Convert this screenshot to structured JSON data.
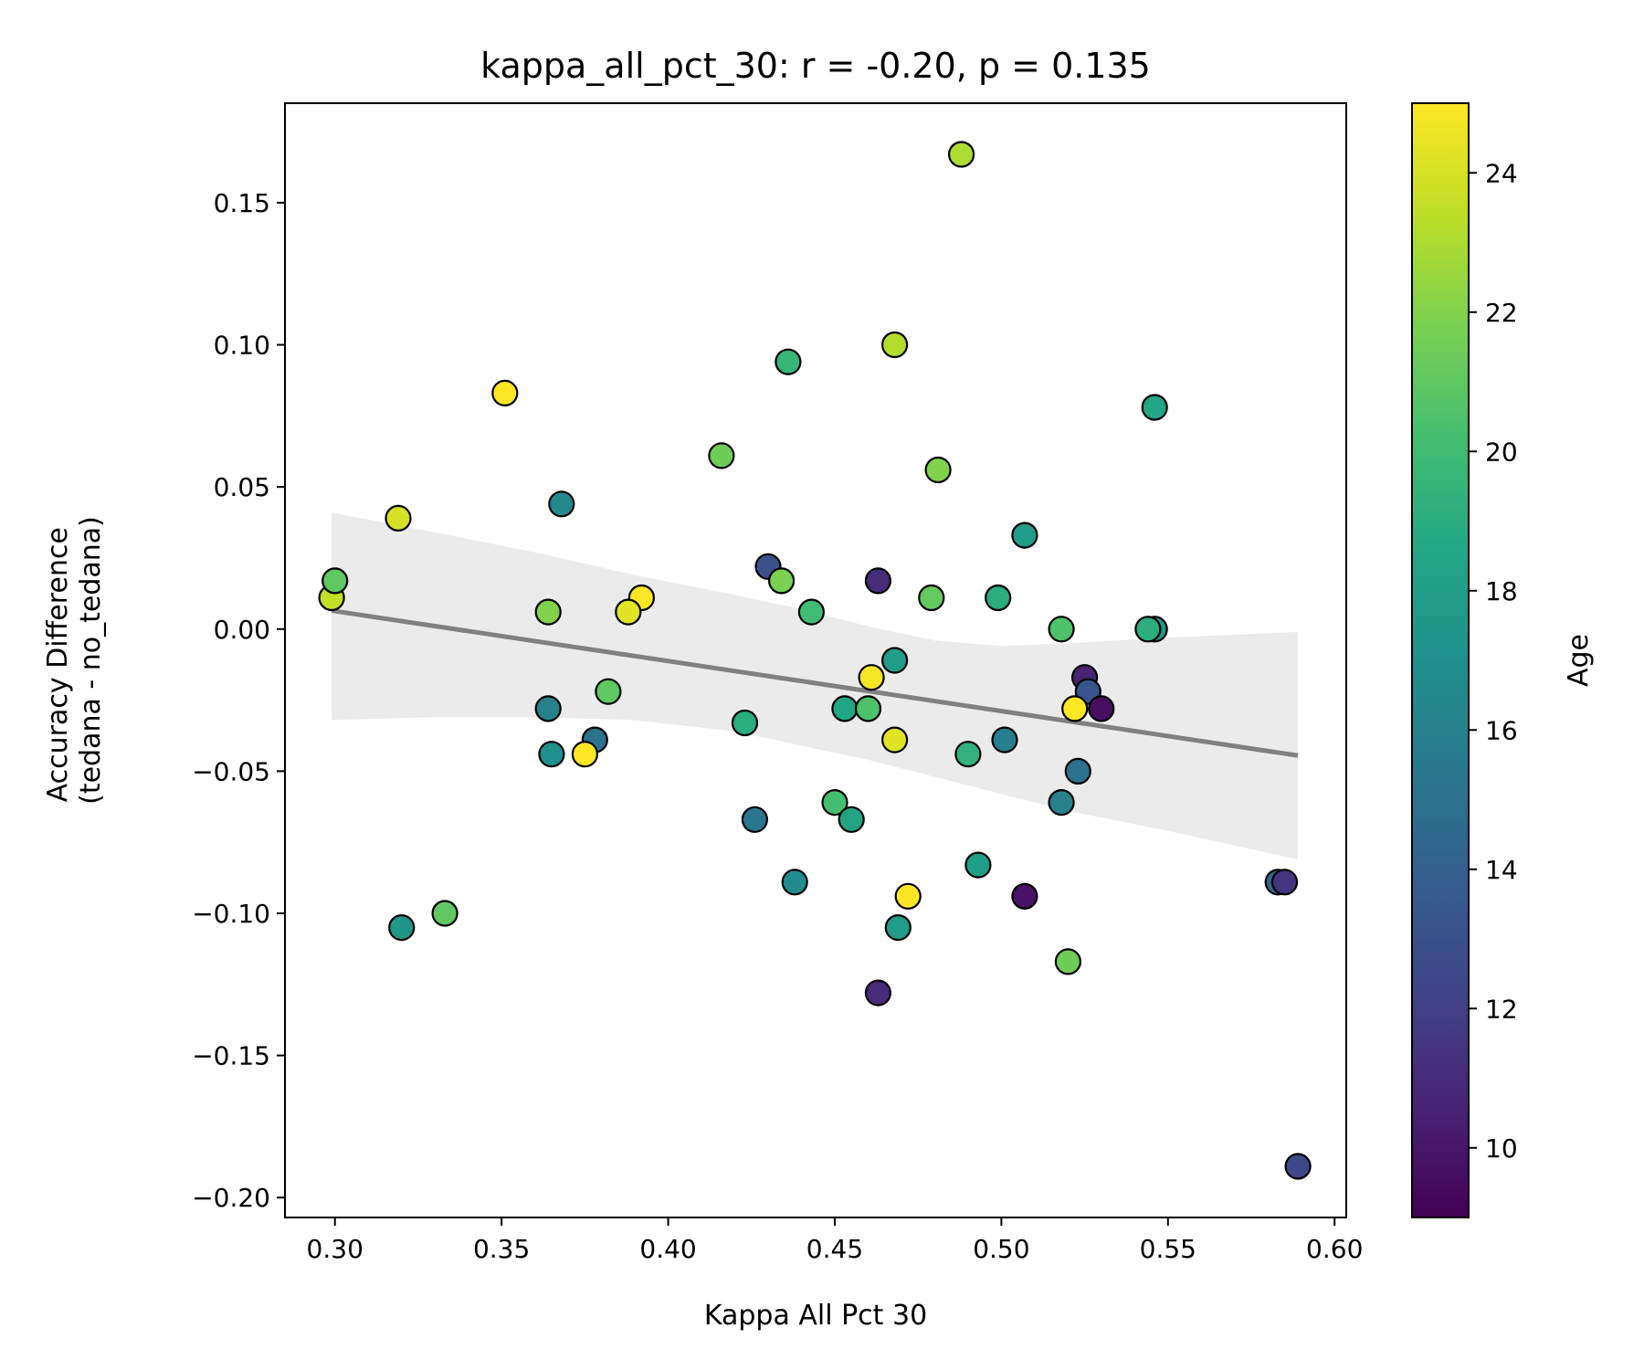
{
  "chart_data": {
    "type": "scatter",
    "title": "kappa_all_pct_30: r = -0.20, p = 0.135",
    "xlabel": "Kappa All Pct 30",
    "ylabel_line1": "Accuracy Difference",
    "ylabel_line2": "(tedana - no_tedana)",
    "colorbar_label": "Age",
    "colormap": "viridis",
    "grid": false,
    "xlim": [
      0.285,
      0.6035
    ],
    "ylim": [
      -0.207,
      0.185
    ],
    "clim": [
      9.0,
      25.0
    ],
    "x_ticks": [
      0.3,
      0.35,
      0.4,
      0.45,
      0.5,
      0.55,
      0.6
    ],
    "x_tick_labels": [
      "0.30",
      "0.35",
      "0.40",
      "0.45",
      "0.50",
      "0.55",
      "0.60"
    ],
    "y_ticks": [
      0.15,
      0.1,
      0.05,
      0.0,
      -0.05,
      -0.1,
      -0.15,
      -0.2
    ],
    "y_tick_labels": [
      "0.15",
      "0.10",
      "0.05",
      "0.00",
      "−0.05",
      "−0.10",
      "−0.15",
      "−0.20"
    ],
    "c_ticks": [
      10,
      12,
      14,
      16,
      18,
      20,
      22,
      24
    ],
    "c_tick_labels": [
      "10",
      "12",
      "14",
      "16",
      "18",
      "20",
      "22",
      "24"
    ],
    "regression": {
      "x": [
        0.299,
        0.589
      ],
      "y": [
        0.0065,
        -0.0445
      ],
      "color": "#808080"
    },
    "ci_band": {
      "upper": [
        [
          0.299,
          0.041
        ],
        [
          0.33,
          0.034
        ],
        [
          0.36,
          0.027
        ],
        [
          0.39,
          0.019
        ],
        [
          0.42,
          0.012
        ],
        [
          0.44,
          0.007
        ],
        [
          0.46,
          0.001
        ],
        [
          0.48,
          -0.004
        ],
        [
          0.5,
          -0.006
        ],
        [
          0.52,
          -0.005
        ],
        [
          0.55,
          -0.003
        ],
        [
          0.589,
          -0.001
        ]
      ],
      "lower": [
        [
          0.299,
          -0.032
        ],
        [
          0.33,
          -0.031
        ],
        [
          0.36,
          -0.031
        ],
        [
          0.39,
          -0.032
        ],
        [
          0.42,
          -0.036
        ],
        [
          0.44,
          -0.041
        ],
        [
          0.46,
          -0.046
        ],
        [
          0.48,
          -0.052
        ],
        [
          0.5,
          -0.058
        ],
        [
          0.52,
          -0.064
        ],
        [
          0.55,
          -0.071
        ],
        [
          0.589,
          -0.081
        ]
      ],
      "color": "#ebebeb"
    },
    "points": [
      {
        "x": 0.488,
        "y": 0.167,
        "c": 23.0
      },
      {
        "x": 0.468,
        "y": 0.1,
        "c": 23.2
      },
      {
        "x": 0.436,
        "y": 0.094,
        "c": 19.6
      },
      {
        "x": 0.351,
        "y": 0.083,
        "c": 25.0
      },
      {
        "x": 0.546,
        "y": 0.078,
        "c": 18.5
      },
      {
        "x": 0.416,
        "y": 0.061,
        "c": 21.5
      },
      {
        "x": 0.481,
        "y": 0.056,
        "c": 22.0
      },
      {
        "x": 0.368,
        "y": 0.044,
        "c": 16.5
      },
      {
        "x": 0.319,
        "y": 0.039,
        "c": 24.0
      },
      {
        "x": 0.507,
        "y": 0.033,
        "c": 17.8
      },
      {
        "x": 0.43,
        "y": 0.022,
        "c": 13.0
      },
      {
        "x": 0.434,
        "y": 0.017,
        "c": 21.8
      },
      {
        "x": 0.463,
        "y": 0.017,
        "c": 11.0
      },
      {
        "x": 0.299,
        "y": 0.011,
        "c": 23.5
      },
      {
        "x": 0.3,
        "y": 0.017,
        "c": 21.0
      },
      {
        "x": 0.392,
        "y": 0.011,
        "c": 25.0
      },
      {
        "x": 0.479,
        "y": 0.011,
        "c": 21.2
      },
      {
        "x": 0.499,
        "y": 0.011,
        "c": 19.0
      },
      {
        "x": 0.364,
        "y": 0.006,
        "c": 22.0
      },
      {
        "x": 0.388,
        "y": 0.006,
        "c": 24.3
      },
      {
        "x": 0.443,
        "y": 0.006,
        "c": 20.0
      },
      {
        "x": 0.518,
        "y": 0.0,
        "c": 20.5
      },
      {
        "x": 0.546,
        "y": 0.0,
        "c": 17.5
      },
      {
        "x": 0.544,
        "y": 0.0,
        "c": 19.0
      },
      {
        "x": 0.468,
        "y": -0.011,
        "c": 17.8
      },
      {
        "x": 0.461,
        "y": -0.017,
        "c": 24.8
      },
      {
        "x": 0.525,
        "y": -0.017,
        "c": 10.5
      },
      {
        "x": 0.382,
        "y": -0.022,
        "c": 21.0
      },
      {
        "x": 0.526,
        "y": -0.022,
        "c": 13.2
      },
      {
        "x": 0.364,
        "y": -0.028,
        "c": 16.0
      },
      {
        "x": 0.453,
        "y": -0.028,
        "c": 18.5
      },
      {
        "x": 0.46,
        "y": -0.028,
        "c": 20.5
      },
      {
        "x": 0.522,
        "y": -0.028,
        "c": 25.0
      },
      {
        "x": 0.53,
        "y": -0.028,
        "c": 9.6
      },
      {
        "x": 0.423,
        "y": -0.033,
        "c": 19.0
      },
      {
        "x": 0.378,
        "y": -0.039,
        "c": 15.0
      },
      {
        "x": 0.468,
        "y": -0.039,
        "c": 24.3
      },
      {
        "x": 0.501,
        "y": -0.039,
        "c": 15.8
      },
      {
        "x": 0.365,
        "y": -0.044,
        "c": 17.0
      },
      {
        "x": 0.375,
        "y": -0.044,
        "c": 25.0
      },
      {
        "x": 0.49,
        "y": -0.044,
        "c": 19.3
      },
      {
        "x": 0.523,
        "y": -0.05,
        "c": 15.0
      },
      {
        "x": 0.45,
        "y": -0.061,
        "c": 20.2
      },
      {
        "x": 0.518,
        "y": -0.061,
        "c": 16.0
      },
      {
        "x": 0.426,
        "y": -0.067,
        "c": 15.3
      },
      {
        "x": 0.455,
        "y": -0.067,
        "c": 18.3
      },
      {
        "x": 0.493,
        "y": -0.083,
        "c": 18.0
      },
      {
        "x": 0.438,
        "y": -0.089,
        "c": 16.7
      },
      {
        "x": 0.583,
        "y": -0.089,
        "c": 14.5
      },
      {
        "x": 0.585,
        "y": -0.089,
        "c": 11.5
      },
      {
        "x": 0.472,
        "y": -0.094,
        "c": 25.0
      },
      {
        "x": 0.507,
        "y": -0.094,
        "c": 9.8
      },
      {
        "x": 0.333,
        "y": -0.1,
        "c": 21.0
      },
      {
        "x": 0.32,
        "y": -0.105,
        "c": 17.5
      },
      {
        "x": 0.469,
        "y": -0.105,
        "c": 17.8
      },
      {
        "x": 0.52,
        "y": -0.117,
        "c": 21.5
      },
      {
        "x": 0.463,
        "y": -0.128,
        "c": 11.0
      },
      {
        "x": 0.589,
        "y": -0.189,
        "c": 12.5
      }
    ]
  }
}
